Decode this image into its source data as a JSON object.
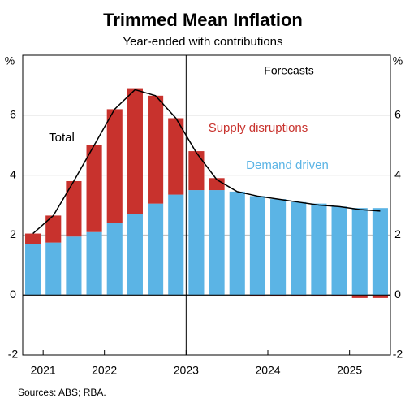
{
  "chart_data": {
    "type": "stacked-bar",
    "title": "Trimmed Mean Inflation",
    "subtitle": "Year-ended with contributions",
    "y_unit": "%",
    "source": "Sources: ABS; RBA.",
    "annotation": "Forecasts",
    "categories": [
      null,
      null,
      null,
      null,
      null,
      null,
      null,
      null,
      null,
      null,
      null,
      null,
      null,
      null,
      null,
      null,
      null,
      null
    ],
    "xlim": [
      -0.5,
      17.5
    ],
    "xticks": [
      {
        "value": 0.5,
        "label": "2021"
      },
      {
        "value": 3.5,
        "label": "2022"
      },
      {
        "value": 7.5,
        "label": "2023"
      },
      {
        "value": 11.5,
        "label": "2024"
      },
      {
        "value": 15.5,
        "label": "2025"
      }
    ],
    "forecast_start": 7.5,
    "ylim": [
      -2,
      8
    ],
    "yticks": [
      -2,
      0,
      2,
      4,
      6
    ],
    "grid": true,
    "series": [
      {
        "name": "Demand driven",
        "color": "#5bb4e5",
        "type": "bar",
        "values": [
          1.7,
          1.75,
          1.95,
          2.1,
          2.4,
          2.7,
          3.05,
          3.35,
          3.5,
          3.5,
          3.45,
          3.3,
          3.2,
          3.1,
          3.05,
          2.95,
          2.9,
          2.9
        ]
      },
      {
        "name": "Supply disruptions",
        "color": "#c8322d",
        "type": "bar",
        "values": [
          0.35,
          0.9,
          1.85,
          2.9,
          3.8,
          4.2,
          3.6,
          2.55,
          1.3,
          0.4,
          0,
          -0.05,
          -0.05,
          -0.05,
          -0.05,
          -0.05,
          -0.1,
          -0.1
        ]
      },
      {
        "name": "Total",
        "color": "#000000",
        "type": "line",
        "values": [
          2.05,
          2.65,
          3.8,
          5.0,
          6.2,
          6.85,
          6.65,
          5.9,
          4.75,
          3.85,
          3.45,
          3.3,
          3.2,
          3.1,
          3.0,
          2.95,
          2.85,
          2.8
        ]
      }
    ]
  }
}
